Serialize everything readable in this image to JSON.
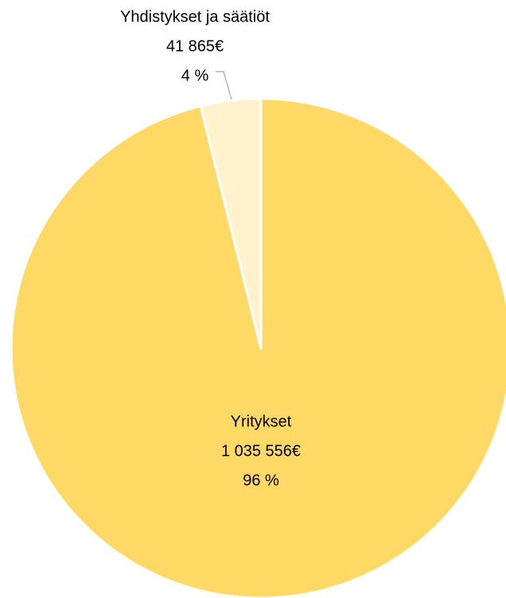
{
  "chart_data": {
    "type": "pie",
    "categories": [
      "Yritykset",
      "Yhdistykset ja säätiöt"
    ],
    "values": [
      1035556,
      41865
    ],
    "value_labels": [
      "1 035 556€",
      "41 865€"
    ],
    "percents": [
      96,
      4
    ],
    "percent_labels": [
      "96 %",
      "4 %"
    ],
    "colors": [
      "#ffd966",
      "#fff2cc"
    ]
  }
}
